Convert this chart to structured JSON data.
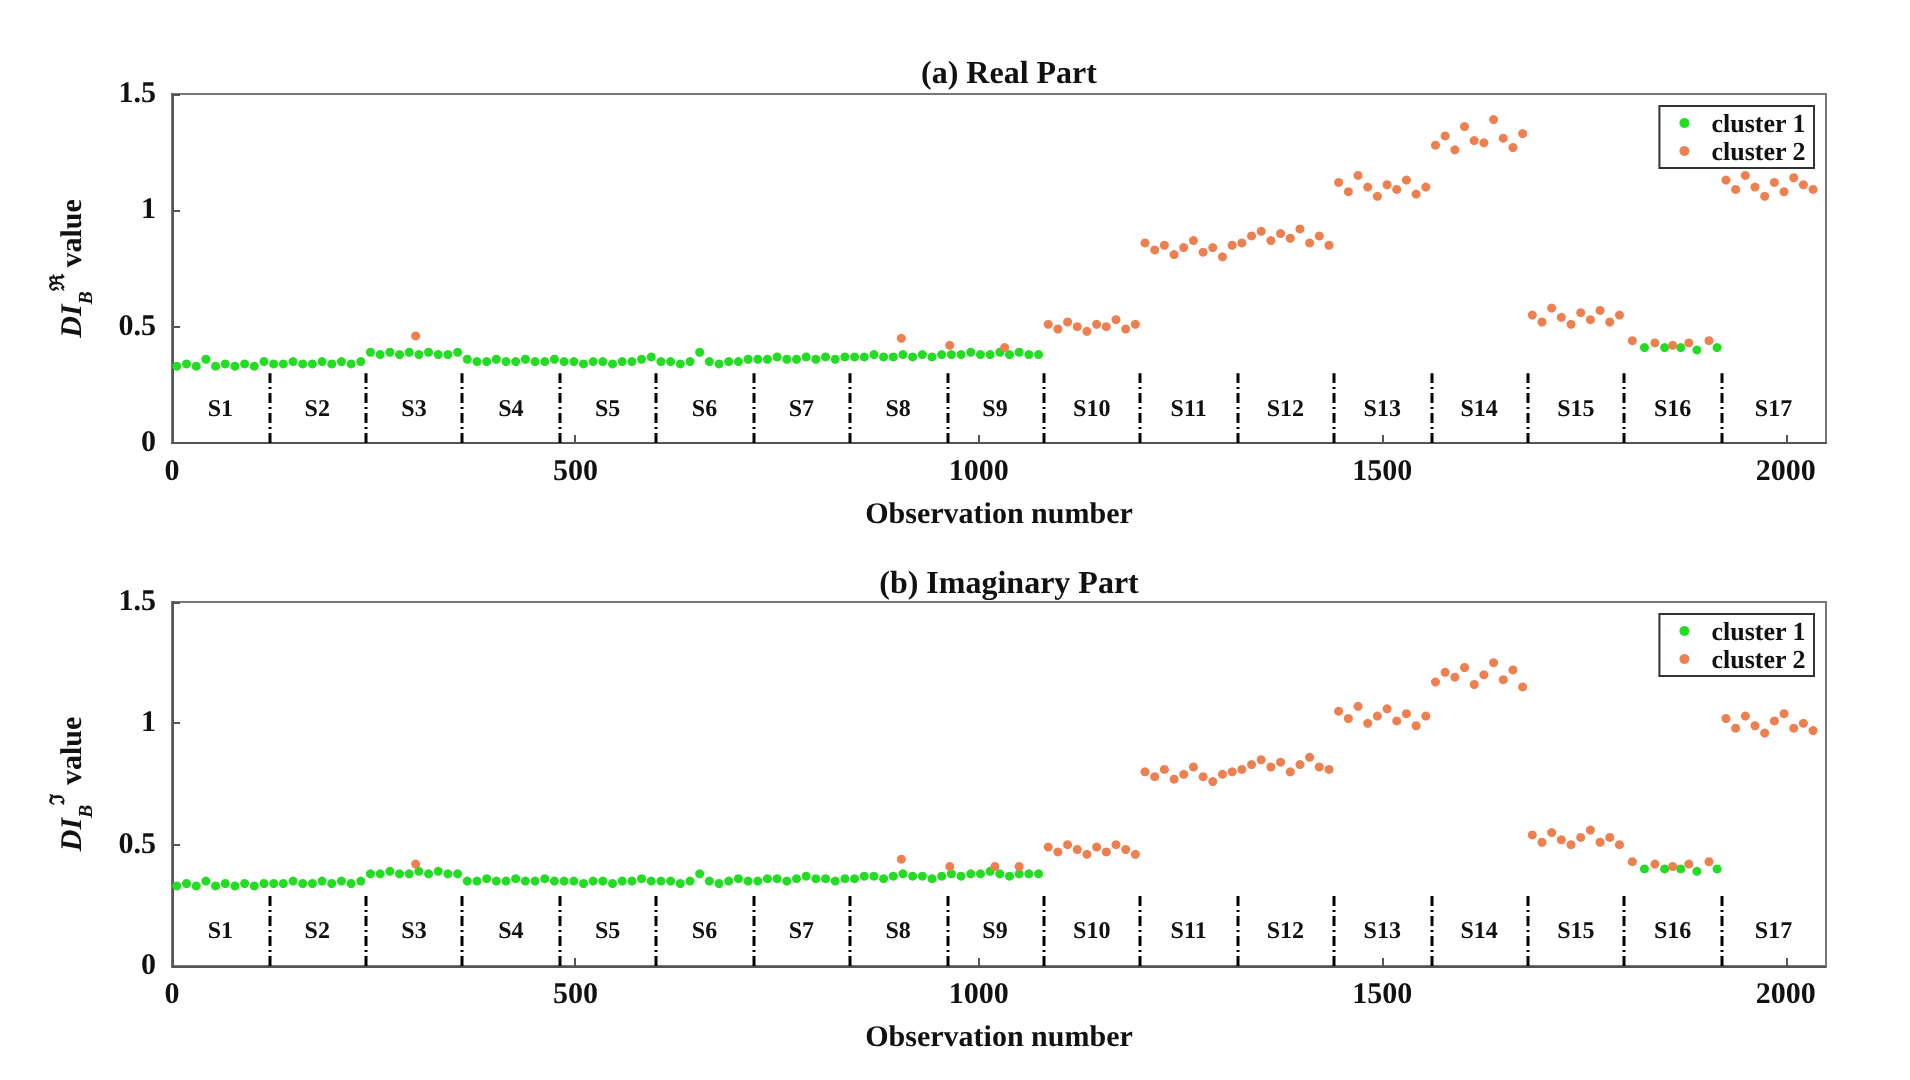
{
  "chart_data": [
    {
      "type": "scatter",
      "title": "(a) Real Part",
      "xlabel": "Observation number",
      "ylabel": "DI$_{B}$$^{ℜ}$ value",
      "xlim": [
        0,
        2050
      ],
      "xticks": [
        0,
        500,
        1000,
        1500,
        2000
      ],
      "ylim": [
        0,
        1.5
      ],
      "yticks": [
        0,
        0.5,
        1,
        1.5
      ],
      "grid": false,
      "legend": "top right",
      "marker": "circle",
      "series": [
        {
          "name": "cluster 1",
          "color": "#22dd22",
          "x": [
            6,
            18,
            30,
            42,
            54,
            66,
            78,
            90,
            102,
            114,
            126,
            138,
            150,
            162,
            174,
            186,
            198,
            210,
            222,
            234,
            246,
            258,
            270,
            282,
            294,
            306,
            318,
            330,
            342,
            354,
            366,
            378,
            390,
            402,
            414,
            426,
            438,
            450,
            462,
            474,
            486,
            498,
            510,
            522,
            534,
            546,
            558,
            570,
            582,
            594,
            606,
            618,
            630,
            642,
            654,
            666,
            678,
            690,
            702,
            714,
            726,
            738,
            750,
            762,
            774,
            786,
            798,
            810,
            822,
            834,
            846,
            858,
            870,
            882,
            894,
            906,
            918,
            930,
            942,
            954,
            966,
            978,
            990,
            1002,
            1014,
            1026,
            1038,
            1050,
            1062,
            1074,
            1825,
            1850,
            1870,
            1890,
            1915
          ],
          "values": [
            0.33,
            0.34,
            0.33,
            0.36,
            0.33,
            0.34,
            0.33,
            0.34,
            0.33,
            0.35,
            0.34,
            0.34,
            0.35,
            0.34,
            0.34,
            0.35,
            0.34,
            0.35,
            0.34,
            0.35,
            0.39,
            0.38,
            0.39,
            0.38,
            0.39,
            0.38,
            0.39,
            0.38,
            0.38,
            0.39,
            0.36,
            0.35,
            0.35,
            0.36,
            0.35,
            0.35,
            0.36,
            0.35,
            0.35,
            0.36,
            0.35,
            0.35,
            0.34,
            0.35,
            0.35,
            0.34,
            0.35,
            0.35,
            0.36,
            0.37,
            0.35,
            0.35,
            0.34,
            0.35,
            0.39,
            0.35,
            0.34,
            0.35,
            0.35,
            0.36,
            0.36,
            0.36,
            0.37,
            0.36,
            0.36,
            0.37,
            0.36,
            0.37,
            0.36,
            0.37,
            0.37,
            0.37,
            0.38,
            0.37,
            0.37,
            0.38,
            0.37,
            0.38,
            0.37,
            0.38,
            0.38,
            0.38,
            0.39,
            0.38,
            0.38,
            0.39,
            0.38,
            0.39,
            0.38,
            0.38,
            0.41,
            0.41,
            0.41,
            0.4,
            0.41
          ]
        },
        {
          "name": "cluster 2",
          "color": "#ee8050",
          "x": [
            302,
            904,
            964,
            1032,
            1086,
            1098,
            1110,
            1122,
            1134,
            1146,
            1158,
            1170,
            1182,
            1194,
            1206,
            1218,
            1230,
            1242,
            1254,
            1266,
            1278,
            1290,
            1302,
            1314,
            1326,
            1338,
            1350,
            1362,
            1374,
            1386,
            1398,
            1410,
            1422,
            1434,
            1446,
            1458,
            1470,
            1482,
            1494,
            1506,
            1518,
            1530,
            1542,
            1554,
            1566,
            1578,
            1590,
            1602,
            1614,
            1626,
            1638,
            1650,
            1662,
            1674,
            1686,
            1698,
            1710,
            1722,
            1734,
            1746,
            1758,
            1770,
            1782,
            1794,
            1810,
            1838,
            1860,
            1880,
            1905,
            1926,
            1938,
            1950,
            1962,
            1974,
            1986,
            1998,
            2010,
            2022,
            2034
          ],
          "values": [
            0.46,
            0.45,
            0.42,
            0.41,
            0.51,
            0.49,
            0.52,
            0.5,
            0.48,
            0.51,
            0.5,
            0.53,
            0.49,
            0.51,
            0.86,
            0.83,
            0.85,
            0.81,
            0.84,
            0.87,
            0.82,
            0.84,
            0.8,
            0.85,
            0.86,
            0.89,
            0.91,
            0.87,
            0.9,
            0.88,
            0.92,
            0.86,
            0.89,
            0.85,
            1.12,
            1.08,
            1.15,
            1.1,
            1.06,
            1.11,
            1.09,
            1.13,
            1.07,
            1.1,
            1.28,
            1.32,
            1.26,
            1.36,
            1.3,
            1.29,
            1.39,
            1.31,
            1.27,
            1.33,
            0.55,
            0.52,
            0.58,
            0.54,
            0.51,
            0.56,
            0.53,
            0.57,
            0.52,
            0.55,
            0.44,
            0.43,
            0.42,
            0.43,
            0.44,
            1.13,
            1.09,
            1.15,
            1.1,
            1.06,
            1.12,
            1.08,
            1.14,
            1.11,
            1.09
          ]
        }
      ],
      "ref_lines": [
        {
          "axis": "x",
          "value": 120,
          "color": "#000000",
          "line_style": "dashed"
        },
        {
          "axis": "x",
          "value": 240,
          "color": "#000000",
          "line_style": "dashed"
        },
        {
          "axis": "x",
          "value": 360,
          "color": "#000000",
          "line_style": "dashed"
        },
        {
          "axis": "x",
          "value": 480,
          "color": "#000000",
          "line_style": "dashed"
        },
        {
          "axis": "x",
          "value": 600,
          "color": "#000000",
          "line_style": "dashed"
        },
        {
          "axis": "x",
          "value": 720,
          "color": "#000000",
          "line_style": "dashed"
        },
        {
          "axis": "x",
          "value": 840,
          "color": "#000000",
          "line_style": "dashed"
        },
        {
          "axis": "x",
          "value": 960,
          "color": "#000000",
          "line_style": "dashed"
        },
        {
          "axis": "x",
          "value": 1080,
          "color": "#000000",
          "line_style": "dashed"
        },
        {
          "axis": "x",
          "value": 1200,
          "color": "#000000",
          "line_style": "dashed"
        },
        {
          "axis": "x",
          "value": 1320,
          "color": "#000000",
          "line_style": "dashed"
        },
        {
          "axis": "x",
          "value": 1440,
          "color": "#000000",
          "line_style": "dashed"
        },
        {
          "axis": "x",
          "value": 1560,
          "color": "#000000",
          "line_style": "dashed"
        },
        {
          "axis": "x",
          "value": 1680,
          "color": "#000000",
          "line_style": "dashed"
        },
        {
          "axis": "x",
          "value": 1800,
          "color": "#000000",
          "line_style": "dashed"
        },
        {
          "axis": "x",
          "value": 1920,
          "color": "#000000",
          "line_style": "dashed"
        }
      ],
      "annotations": [
        "S1",
        "S2",
        "S3",
        "S4",
        "S5",
        "S6",
        "S7",
        "S8",
        "S9",
        "S10",
        "S11",
        "S12",
        "S13",
        "S14",
        "S15",
        "S16",
        "S17"
      ]
    },
    {
      "type": "scatter",
      "title": "(b) Imaginary Part",
      "xlabel": "Observation number",
      "ylabel": "DI$_{B}$$^{ℑ}$ value",
      "xlim": [
        0,
        2050
      ],
      "xticks": [
        0,
        500,
        1000,
        1500,
        2000
      ],
      "ylim": [
        0,
        1.5
      ],
      "yticks": [
        0,
        0.5,
        1,
        1.5
      ],
      "grid": false,
      "legend": "top right",
      "marker": "circle",
      "series": [
        {
          "name": "cluster 1",
          "color": "#22dd22",
          "x": [
            6,
            18,
            30,
            42,
            54,
            66,
            78,
            90,
            102,
            114,
            126,
            138,
            150,
            162,
            174,
            186,
            198,
            210,
            222,
            234,
            246,
            258,
            270,
            282,
            294,
            306,
            318,
            330,
            342,
            354,
            366,
            378,
            390,
            402,
            414,
            426,
            438,
            450,
            462,
            474,
            486,
            498,
            510,
            522,
            534,
            546,
            558,
            570,
            582,
            594,
            606,
            618,
            630,
            642,
            654,
            666,
            678,
            690,
            702,
            714,
            726,
            738,
            750,
            762,
            774,
            786,
            798,
            810,
            822,
            834,
            846,
            858,
            870,
            882,
            894,
            906,
            918,
            930,
            942,
            954,
            966,
            978,
            990,
            1002,
            1014,
            1026,
            1038,
            1050,
            1062,
            1074,
            1825,
            1850,
            1870,
            1890,
            1915
          ],
          "values": [
            0.33,
            0.34,
            0.33,
            0.35,
            0.33,
            0.34,
            0.33,
            0.34,
            0.33,
            0.34,
            0.34,
            0.34,
            0.35,
            0.34,
            0.34,
            0.35,
            0.34,
            0.35,
            0.34,
            0.35,
            0.38,
            0.38,
            0.39,
            0.38,
            0.38,
            0.39,
            0.38,
            0.39,
            0.38,
            0.38,
            0.35,
            0.35,
            0.36,
            0.35,
            0.35,
            0.36,
            0.35,
            0.35,
            0.36,
            0.35,
            0.35,
            0.35,
            0.34,
            0.35,
            0.35,
            0.34,
            0.35,
            0.35,
            0.36,
            0.35,
            0.35,
            0.35,
            0.34,
            0.35,
            0.38,
            0.35,
            0.34,
            0.35,
            0.36,
            0.35,
            0.35,
            0.36,
            0.36,
            0.35,
            0.36,
            0.37,
            0.36,
            0.36,
            0.35,
            0.36,
            0.36,
            0.37,
            0.37,
            0.36,
            0.37,
            0.38,
            0.37,
            0.37,
            0.36,
            0.37,
            0.38,
            0.37,
            0.38,
            0.38,
            0.39,
            0.38,
            0.37,
            0.38,
            0.38,
            0.38,
            0.4,
            0.4,
            0.4,
            0.39,
            0.4
          ]
        },
        {
          "name": "cluster 2",
          "color": "#ee8050",
          "x": [
            302,
            904,
            964,
            1020,
            1050,
            1086,
            1098,
            1110,
            1122,
            1134,
            1146,
            1158,
            1170,
            1182,
            1194,
            1206,
            1218,
            1230,
            1242,
            1254,
            1266,
            1278,
            1290,
            1302,
            1314,
            1326,
            1338,
            1350,
            1362,
            1374,
            1386,
            1398,
            1410,
            1422,
            1434,
            1446,
            1458,
            1470,
            1482,
            1494,
            1506,
            1518,
            1530,
            1542,
            1554,
            1566,
            1578,
            1590,
            1602,
            1614,
            1626,
            1638,
            1650,
            1662,
            1674,
            1686,
            1698,
            1710,
            1722,
            1734,
            1746,
            1758,
            1770,
            1782,
            1794,
            1810,
            1838,
            1860,
            1880,
            1905,
            1926,
            1938,
            1950,
            1962,
            1974,
            1986,
            1998,
            2010,
            2022,
            2034
          ],
          "values": [
            0.42,
            0.44,
            0.41,
            0.41,
            0.41,
            0.49,
            0.47,
            0.5,
            0.48,
            0.46,
            0.49,
            0.47,
            0.5,
            0.48,
            0.46,
            0.8,
            0.78,
            0.81,
            0.77,
            0.79,
            0.82,
            0.78,
            0.76,
            0.79,
            0.8,
            0.81,
            0.83,
            0.85,
            0.82,
            0.84,
            0.8,
            0.83,
            0.86,
            0.82,
            0.81,
            1.05,
            1.02,
            1.07,
            1.0,
            1.03,
            1.06,
            1.01,
            1.04,
            0.99,
            1.03,
            1.17,
            1.21,
            1.19,
            1.23,
            1.16,
            1.2,
            1.25,
            1.18,
            1.22,
            1.15,
            0.54,
            0.51,
            0.55,
            0.52,
            0.5,
            0.53,
            0.56,
            0.51,
            0.53,
            0.5,
            0.43,
            0.42,
            0.41,
            0.42,
            0.43,
            1.02,
            0.98,
            1.03,
            0.99,
            0.96,
            1.01,
            1.04,
            0.98,
            1.0,
            0.97
          ]
        }
      ],
      "ref_lines": [
        {
          "axis": "x",
          "value": 120,
          "color": "#000000",
          "line_style": "dashed"
        },
        {
          "axis": "x",
          "value": 240,
          "color": "#000000",
          "line_style": "dashed"
        },
        {
          "axis": "x",
          "value": 360,
          "color": "#000000",
          "line_style": "dashed"
        },
        {
          "axis": "x",
          "value": 480,
          "color": "#000000",
          "line_style": "dashed"
        },
        {
          "axis": "x",
          "value": 600,
          "color": "#000000",
          "line_style": "dashed"
        },
        {
          "axis": "x",
          "value": 720,
          "color": "#000000",
          "line_style": "dashed"
        },
        {
          "axis": "x",
          "value": 840,
          "color": "#000000",
          "line_style": "dashed"
        },
        {
          "axis": "x",
          "value": 960,
          "color": "#000000",
          "line_style": "dashed"
        },
        {
          "axis": "x",
          "value": 1080,
          "color": "#000000",
          "line_style": "dashed"
        },
        {
          "axis": "x",
          "value": 1200,
          "color": "#000000",
          "line_style": "dashed"
        },
        {
          "axis": "x",
          "value": 1320,
          "color": "#000000",
          "line_style": "dashed"
        },
        {
          "axis": "x",
          "value": 1440,
          "color": "#000000",
          "line_style": "dashed"
        },
        {
          "axis": "x",
          "value": 1560,
          "color": "#000000",
          "line_style": "dashed"
        },
        {
          "axis": "x",
          "value": 1680,
          "color": "#000000",
          "line_style": "dashed"
        },
        {
          "axis": "x",
          "value": 1800,
          "color": "#000000",
          "line_style": "dashed"
        },
        {
          "axis": "x",
          "value": 1920,
          "color": "#000000",
          "line_style": "dashed"
        }
      ],
      "annotations": [
        "S1",
        "S2",
        "S3",
        "S4",
        "S5",
        "S6",
        "S7",
        "S8",
        "S9",
        "S10",
        "S11",
        "S12",
        "S13",
        "S14",
        "S15",
        "S16",
        "S17"
      ]
    }
  ]
}
